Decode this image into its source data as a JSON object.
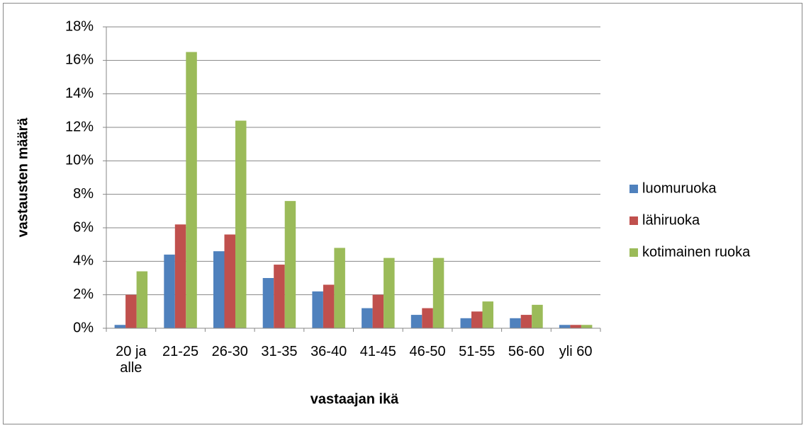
{
  "chart_data": {
    "type": "bar",
    "x_label": "vastaajan ikä",
    "y_label": "vastausten määrä",
    "categories": [
      "20 ja alle",
      "21-25",
      "26-30",
      "31-35",
      "36-40",
      "41-45",
      "46-50",
      "51-55",
      "56-60",
      "yli 60"
    ],
    "series": [
      {
        "name": "luomuruoka",
        "color": "#4f81bd",
        "values": [
          0.2,
          4.4,
          4.6,
          3.0,
          2.2,
          1.2,
          0.8,
          0.6,
          0.6,
          0.2
        ]
      },
      {
        "name": "lähiruoka",
        "color": "#c0504d",
        "values": [
          2.0,
          6.2,
          5.6,
          3.8,
          2.6,
          2.0,
          1.2,
          1.0,
          0.8,
          0.2
        ]
      },
      {
        "name": "kotimainen ruoka",
        "color": "#9bbb59",
        "values": [
          3.4,
          16.5,
          12.4,
          7.6,
          4.8,
          4.2,
          4.2,
          1.6,
          1.4,
          0.2
        ]
      }
    ],
    "ylim": [
      0,
      18
    ],
    "yticks": [
      {
        "value": 0,
        "label": "0%"
      },
      {
        "value": 2,
        "label": "2%"
      },
      {
        "value": 4,
        "label": "4%"
      },
      {
        "value": 6,
        "label": "6%"
      },
      {
        "value": 8,
        "label": "8%"
      },
      {
        "value": 10,
        "label": "10%"
      },
      {
        "value": 12,
        "label": "12%"
      },
      {
        "value": 14,
        "label": "14%"
      },
      {
        "value": 16,
        "label": "16%"
      },
      {
        "value": 18,
        "label": "18%"
      }
    ],
    "grid": true,
    "legend": "right"
  }
}
